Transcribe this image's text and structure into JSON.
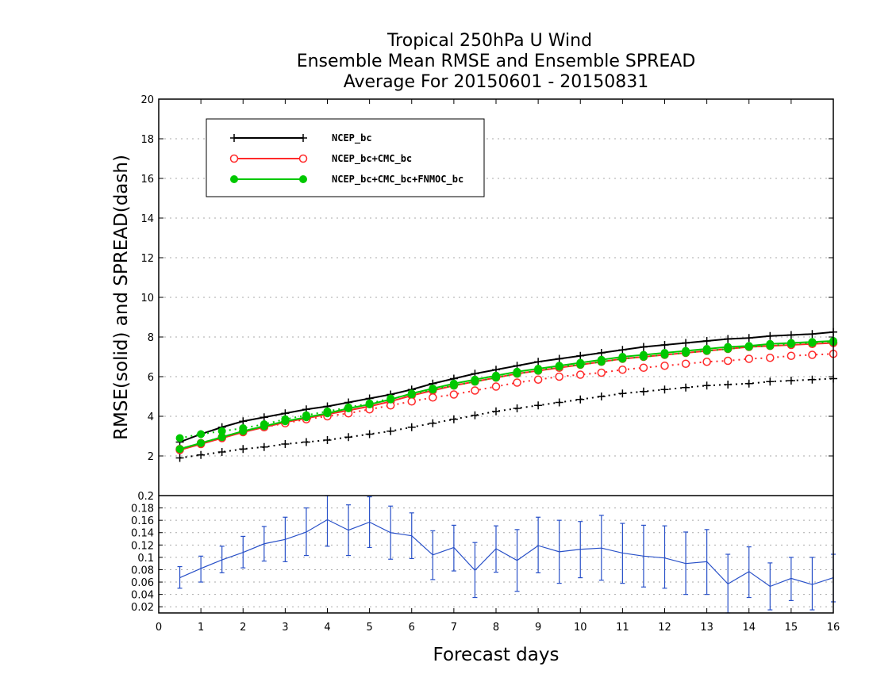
{
  "chart_data": [
    {
      "type": "line",
      "title": [
        "Tropical 250hPa U Wind",
        "Ensemble Mean RMSE and Ensemble SPREAD",
        "Average For 20150601 - 20150831"
      ],
      "ylabel": "RMSE(solid) and SPREAD(dash)",
      "ylim": [
        0,
        20
      ],
      "yticks": [
        2,
        4,
        6,
        8,
        10,
        12,
        14,
        16,
        18,
        20
      ],
      "grid": true,
      "legend_placement": "top-left",
      "x": [
        0.5,
        1,
        1.5,
        2,
        2.5,
        3,
        3.5,
        4,
        4.5,
        5,
        5.5,
        6,
        6.5,
        7,
        7.5,
        8,
        8.5,
        9,
        9.5,
        10,
        10.5,
        11,
        11.5,
        12,
        12.5,
        13,
        13.5,
        14,
        14.5,
        15,
        15.5,
        16
      ],
      "series": [
        {
          "name": "NCEP_bc",
          "color": "#000000",
          "marker": "plus",
          "rmse": [
            2.7,
            3.1,
            3.45,
            3.75,
            3.95,
            4.15,
            4.35,
            4.5,
            4.7,
            4.9,
            5.1,
            5.35,
            5.65,
            5.9,
            6.15,
            6.35,
            6.55,
            6.75,
            6.9,
            7.05,
            7.2,
            7.35,
            7.5,
            7.6,
            7.7,
            7.8,
            7.9,
            7.95,
            8.05,
            8.1,
            8.15,
            8.25
          ],
          "spread": [
            1.9,
            2.05,
            2.2,
            2.35,
            2.45,
            2.6,
            2.7,
            2.8,
            2.95,
            3.1,
            3.25,
            3.45,
            3.65,
            3.85,
            4.05,
            4.25,
            4.4,
            4.55,
            4.7,
            4.85,
            5.0,
            5.15,
            5.25,
            5.35,
            5.45,
            5.55,
            5.6,
            5.65,
            5.75,
            5.8,
            5.85,
            5.9
          ]
        },
        {
          "name": "NCEP_bc+CMC_bc",
          "color": "#ff2a2a",
          "marker": "open-circle",
          "rmse": [
            2.3,
            2.6,
            2.9,
            3.2,
            3.45,
            3.7,
            3.9,
            4.1,
            4.3,
            4.5,
            4.75,
            5.05,
            5.3,
            5.55,
            5.75,
            5.95,
            6.15,
            6.3,
            6.45,
            6.6,
            6.75,
            6.9,
            7.0,
            7.1,
            7.2,
            7.3,
            7.4,
            7.5,
            7.55,
            7.6,
            7.65,
            7.7
          ],
          "spread": [
            2.35,
            2.65,
            2.95,
            3.25,
            3.45,
            3.65,
            3.85,
            4.0,
            4.15,
            4.35,
            4.55,
            4.75,
            4.95,
            5.1,
            5.3,
            5.5,
            5.7,
            5.85,
            6.0,
            6.1,
            6.2,
            6.35,
            6.45,
            6.55,
            6.65,
            6.75,
            6.8,
            6.9,
            6.95,
            7.05,
            7.1,
            7.15
          ]
        },
        {
          "name": "NCEP_bc+CMC_bc+FNMOC_bc",
          "color": "#00c800",
          "marker": "filled-circle",
          "rmse": [
            2.35,
            2.65,
            2.95,
            3.25,
            3.5,
            3.75,
            3.95,
            4.15,
            4.4,
            4.6,
            4.85,
            5.15,
            5.4,
            5.65,
            5.85,
            6.05,
            6.25,
            6.4,
            6.55,
            6.7,
            6.85,
            7.0,
            7.1,
            7.2,
            7.3,
            7.4,
            7.5,
            7.55,
            7.65,
            7.7,
            7.75,
            7.8
          ],
          "spread": [
            2.9,
            3.1,
            3.25,
            3.4,
            3.6,
            3.85,
            4.05,
            4.25,
            4.45,
            4.65,
            4.9,
            5.1,
            5.35,
            5.55,
            5.75,
            5.95,
            6.15,
            6.3,
            6.5,
            6.6,
            6.75,
            6.9,
            7.0,
            7.1,
            7.2,
            7.3,
            7.4,
            7.5,
            7.55,
            7.65,
            7.7,
            7.75
          ]
        }
      ]
    },
    {
      "type": "line",
      "xlabel": "Forecast days",
      "xlim": [
        0,
        16
      ],
      "xticks": [
        0,
        1,
        2,
        3,
        4,
        5,
        6,
        7,
        8,
        9,
        10,
        11,
        12,
        13,
        14,
        15,
        16
      ],
      "ylim": [
        0.01,
        0.2
      ],
      "ytick_labels": [
        "0.02",
        "0.04",
        "0.06",
        "0.08",
        "0.1",
        "0.12",
        "0.14",
        "0.16",
        "0.18",
        "0.2"
      ],
      "grid": true,
      "color": "#2850c8",
      "x": [
        0.5,
        1,
        1.5,
        2,
        2.5,
        3,
        3.5,
        4,
        4.5,
        5,
        5.5,
        6,
        6.5,
        7,
        7.5,
        8,
        8.5,
        9,
        9.5,
        10,
        10.5,
        11,
        11.5,
        12,
        12.5,
        13,
        13.5,
        14,
        14.5,
        15,
        15.5,
        16
      ],
      "values": [
        0.067,
        0.082,
        0.096,
        0.108,
        0.122,
        0.129,
        0.141,
        0.161,
        0.144,
        0.157,
        0.14,
        0.135,
        0.104,
        0.116,
        0.079,
        0.114,
        0.095,
        0.119,
        0.109,
        0.113,
        0.115,
        0.107,
        0.102,
        0.099,
        0.09,
        0.093,
        0.057,
        0.077,
        0.053,
        0.066,
        0.056,
        0.067
      ],
      "err_low": [
        0.05,
        0.06,
        0.075,
        0.083,
        0.094,
        0.093,
        0.103,
        0.118,
        0.103,
        0.116,
        0.097,
        0.098,
        0.064,
        0.078,
        0.035,
        0.076,
        0.045,
        0.075,
        0.058,
        0.067,
        0.063,
        0.058,
        0.052,
        0.05,
        0.04,
        0.04,
        0.01,
        0.035,
        0.015,
        0.03,
        0.015,
        0.028
      ],
      "err_high": [
        0.085,
        0.102,
        0.118,
        0.134,
        0.15,
        0.165,
        0.18,
        0.2,
        0.185,
        0.198,
        0.183,
        0.172,
        0.143,
        0.152,
        0.124,
        0.151,
        0.145,
        0.165,
        0.16,
        0.158,
        0.168,
        0.155,
        0.152,
        0.151,
        0.141,
        0.145,
        0.105,
        0.117,
        0.091,
        0.1,
        0.1,
        0.105
      ]
    }
  ]
}
